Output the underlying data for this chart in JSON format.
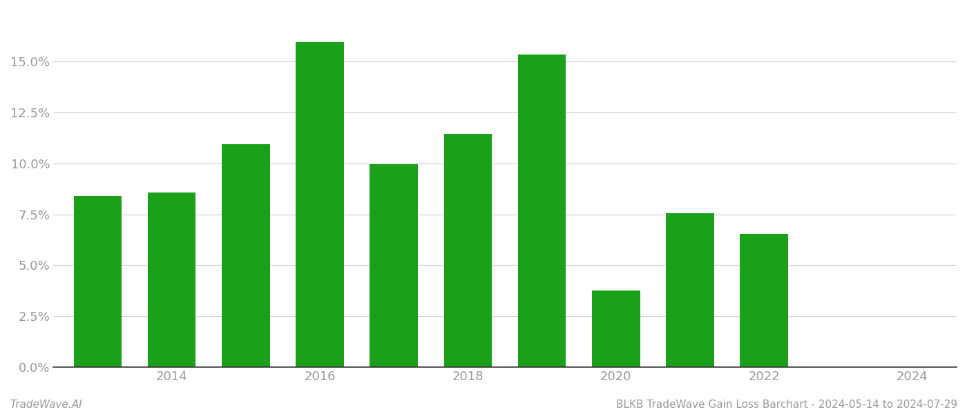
{
  "years": [
    2013,
    2014,
    2015,
    2016,
    2017,
    2018,
    2019,
    2020,
    2021,
    2022,
    2023
  ],
  "values": [
    0.0841,
    0.0855,
    0.1095,
    0.1595,
    0.0995,
    0.1145,
    0.1535,
    0.0375,
    0.0755,
    0.0655,
    0.0
  ],
  "bar_color": "#1aa019",
  "background_color": "#ffffff",
  "footer_left": "TradeWave.AI",
  "footer_right": "BLKB TradeWave Gain Loss Barchart - 2024-05-14 to 2024-07-29",
  "ylim": [
    0,
    0.175
  ],
  "yticks": [
    0.0,
    0.025,
    0.05,
    0.075,
    0.1,
    0.125,
    0.15
  ],
  "xticks": [
    2014,
    2016,
    2018,
    2020,
    2022,
    2024
  ],
  "xlim": [
    2012.4,
    2024.6
  ],
  "grid_color": "#cccccc",
  "tick_label_color": "#999999",
  "footer_color": "#999999",
  "axis_line_color": "#333333",
  "bar_width": 0.65,
  "tick_fontsize": 13,
  "footer_fontsize": 11
}
